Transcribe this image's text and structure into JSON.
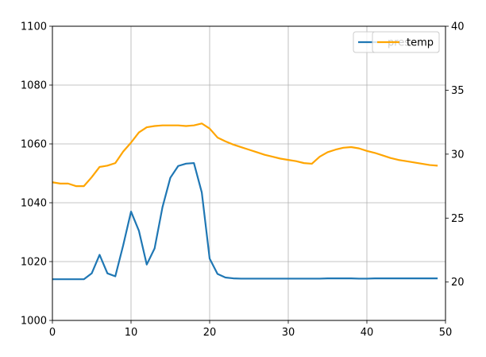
{
  "chart_data": {
    "type": "line",
    "x": [
      0,
      1,
      2,
      3,
      4,
      5,
      6,
      7,
      8,
      9,
      10,
      11,
      12,
      13,
      14,
      15,
      16,
      17,
      18,
      19,
      20,
      21,
      22,
      23,
      24,
      25,
      26,
      27,
      28,
      29,
      30,
      31,
      32,
      33,
      34,
      35,
      36,
      37,
      38,
      39,
      40,
      41,
      42,
      43,
      44,
      45,
      46,
      47,
      48,
      49
    ],
    "xlim": [
      0,
      50
    ],
    "x_ticks": [
      "0",
      "10",
      "20",
      "30",
      "40",
      "50"
    ],
    "grid": true,
    "series": [
      {
        "name": "pres",
        "axis": "left",
        "color": "#1f77b4",
        "values": [
          1014,
          1014,
          1014,
          1014,
          1014,
          1016,
          1022.3,
          1016,
          1015,
          1025.5,
          1037,
          1030.5,
          1019,
          1024.5,
          1038.5,
          1048.5,
          1052.5,
          1053.3,
          1053.5,
          1043.5,
          1021,
          1015.8,
          1014.6,
          1014.3,
          1014.2,
          1014.2,
          1014.2,
          1014.2,
          1014.2,
          1014.2,
          1014.2,
          1014.2,
          1014.2,
          1014.2,
          1014.2,
          1014.3,
          1014.3,
          1014.3,
          1014.3,
          1014.2,
          1014.2,
          1014.3,
          1014.3,
          1014.3,
          1014.3,
          1014.3,
          1014.3,
          1014.3,
          1014.3,
          1014.3
        ]
      },
      {
        "name": "temp",
        "axis": "right",
        "color": "#ffa500",
        "values": [
          27.8,
          27.7,
          27.7,
          27.5,
          27.5,
          28.2,
          29.0,
          29.1,
          29.3,
          30.2,
          30.9,
          31.7,
          32.1,
          32.2,
          32.25,
          32.25,
          32.25,
          32.2,
          32.25,
          32.4,
          32.0,
          31.3,
          31.0,
          30.75,
          30.55,
          30.35,
          30.15,
          29.95,
          29.8,
          29.65,
          29.55,
          29.45,
          29.3,
          29.25,
          29.8,
          30.15,
          30.35,
          30.5,
          30.55,
          30.45,
          30.25,
          30.1,
          29.9,
          29.7,
          29.55,
          29.45,
          29.35,
          29.25,
          29.15,
          29.1
        ]
      }
    ],
    "y_left": {
      "lim": [
        1000,
        1100
      ],
      "ticks": [
        "1000",
        "1020",
        "1040",
        "1060",
        "1080",
        "1100"
      ]
    },
    "y_right": {
      "lim": [
        17,
        40
      ],
      "ticks": [
        "20",
        "25",
        "30",
        "35",
        "40"
      ]
    },
    "legend_placement": "top-right",
    "legend_overlap": true
  }
}
